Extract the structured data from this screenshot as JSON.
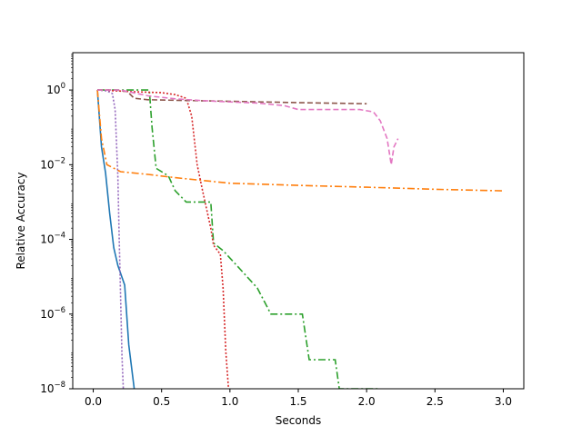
{
  "chart_data": {
    "type": "line",
    "xlabel": "Seconds",
    "ylabel": "Relative Accuracy",
    "xlim": [
      -0.15,
      3.15
    ],
    "ylim": [
      1e-08,
      10
    ],
    "yscale": "log",
    "grid": false,
    "x_ticks": [
      {
        "value": 0.0,
        "label": "0.0"
      },
      {
        "value": 0.5,
        "label": "0.5"
      },
      {
        "value": 1.0,
        "label": "1.0"
      },
      {
        "value": 1.5,
        "label": "1.5"
      },
      {
        "value": 2.0,
        "label": "2.0"
      },
      {
        "value": 2.5,
        "label": "2.5"
      },
      {
        "value": 3.0,
        "label": "3.0"
      }
    ],
    "y_ticks": [
      {
        "value": 1,
        "base": "10",
        "exp": "0"
      },
      {
        "value": 0.01,
        "base": "10",
        "exp": "−2"
      },
      {
        "value": 0.0001,
        "base": "10",
        "exp": "−4"
      },
      {
        "value": 1e-06,
        "base": "10",
        "exp": "−6"
      },
      {
        "value": 1e-08,
        "base": "10",
        "exp": "−8"
      }
    ],
    "series": [
      {
        "color": "#1f77b4",
        "dash": "",
        "points": [
          [
            0.03,
            1
          ],
          [
            0.06,
            0.03
          ],
          [
            0.09,
            0.006
          ],
          [
            0.12,
            0.0005
          ],
          [
            0.15,
            6e-05
          ],
          [
            0.18,
            2e-05
          ],
          [
            0.23,
            6e-06
          ],
          [
            0.26,
            1.5e-07
          ],
          [
            0.3,
            1e-08
          ]
        ]
      },
      {
        "color": "#ff7f0e",
        "dash": "8,3,2,3",
        "points": [
          [
            0.03,
            1
          ],
          [
            0.06,
            0.05
          ],
          [
            0.1,
            0.01
          ],
          [
            0.2,
            0.0065
          ],
          [
            0.4,
            0.0055
          ],
          [
            0.6,
            0.0045
          ],
          [
            1.0,
            0.0032
          ],
          [
            1.5,
            0.0028
          ],
          [
            2.0,
            0.0025
          ],
          [
            2.5,
            0.0022
          ],
          [
            3.0,
            0.002
          ]
        ]
      },
      {
        "color": "#2ca02c",
        "dash": "8,3,2,3",
        "points": [
          [
            0.03,
            1
          ],
          [
            0.2,
            1
          ],
          [
            0.3,
            1
          ],
          [
            0.41,
            1
          ],
          [
            0.43,
            0.1
          ],
          [
            0.46,
            0.008
          ],
          [
            0.55,
            0.005
          ],
          [
            0.6,
            0.002
          ],
          [
            0.68,
            0.001
          ],
          [
            0.86,
            0.001
          ],
          [
            0.88,
            8e-05
          ],
          [
            0.95,
            5e-05
          ],
          [
            1.05,
            2e-05
          ],
          [
            1.2,
            5e-06
          ],
          [
            1.3,
            1e-06
          ],
          [
            1.53,
            1e-06
          ],
          [
            1.58,
            6e-08
          ],
          [
            1.77,
            6e-08
          ],
          [
            1.8,
            1e-08
          ],
          [
            2.1,
            1e-08
          ]
        ]
      },
      {
        "color": "#d62728",
        "dash": "2,2",
        "points": [
          [
            0.03,
            1
          ],
          [
            0.3,
            0.9
          ],
          [
            0.5,
            0.85
          ],
          [
            0.6,
            0.75
          ],
          [
            0.68,
            0.6
          ],
          [
            0.72,
            0.2
          ],
          [
            0.76,
            0.01
          ],
          [
            0.8,
            0.002
          ],
          [
            0.86,
            0.0002
          ],
          [
            0.88,
            7e-05
          ],
          [
            0.93,
            4e-05
          ],
          [
            0.95,
            5e-06
          ],
          [
            0.97,
            1e-07
          ],
          [
            0.99,
            1e-08
          ]
        ]
      },
      {
        "color": "#9467bd",
        "dash": "2,2",
        "points": [
          [
            0.03,
            1
          ],
          [
            0.1,
            0.95
          ],
          [
            0.14,
            0.8
          ],
          [
            0.16,
            0.3
          ],
          [
            0.18,
            0.005
          ],
          [
            0.19,
            0.0001
          ],
          [
            0.2,
            3e-06
          ],
          [
            0.21,
            8e-08
          ],
          [
            0.22,
            1e-08
          ]
        ]
      },
      {
        "color": "#8c564b",
        "dash": "6,3",
        "points": [
          [
            0.03,
            1
          ],
          [
            0.15,
            1
          ],
          [
            0.2,
            0.98
          ],
          [
            0.25,
            0.9
          ],
          [
            0.3,
            0.6
          ],
          [
            0.4,
            0.55
          ],
          [
            0.6,
            0.53
          ],
          [
            1.0,
            0.5
          ],
          [
            1.5,
            0.46
          ],
          [
            2.0,
            0.43
          ]
        ]
      },
      {
        "color": "#e377c2",
        "dash": "6,3",
        "points": [
          [
            0.03,
            1
          ],
          [
            0.2,
            1
          ],
          [
            0.4,
            0.7
          ],
          [
            0.6,
            0.58
          ],
          [
            0.8,
            0.52
          ],
          [
            1.0,
            0.48
          ],
          [
            1.2,
            0.45
          ],
          [
            1.4,
            0.38
          ],
          [
            1.5,
            0.3
          ],
          [
            1.7,
            0.3
          ],
          [
            1.95,
            0.3
          ],
          [
            2.05,
            0.26
          ],
          [
            2.1,
            0.15
          ],
          [
            2.15,
            0.05
          ],
          [
            2.18,
            0.01
          ],
          [
            2.2,
            0.03
          ],
          [
            2.23,
            0.05
          ]
        ]
      }
    ]
  }
}
